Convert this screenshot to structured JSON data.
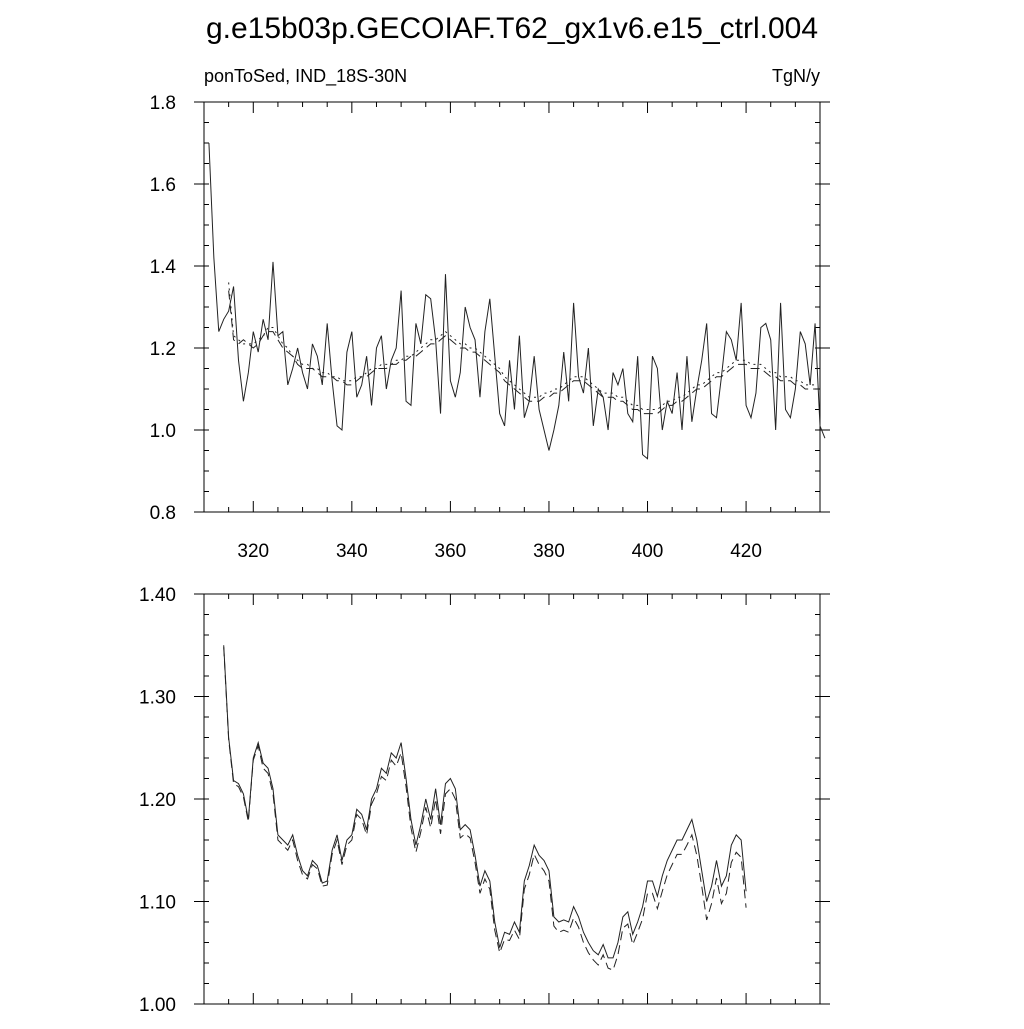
{
  "page": {
    "title": "g.e15b03p.GECOIAF.T62_gx1v6.e15_ctrl.004"
  },
  "chart_data": [
    {
      "type": "line",
      "subtitle_left": "ponToSed, IND_18S-30N",
      "subtitle_right": "TgN/y",
      "xlim": [
        310,
        435
      ],
      "ylim": [
        0.8,
        1.8
      ],
      "x_ticks": [
        320,
        340,
        360,
        380,
        400,
        420
      ],
      "x_tick_labels": [
        "320",
        "340",
        "360",
        "380",
        "400",
        "420"
      ],
      "y_ticks": [
        0.8,
        1.0,
        1.2,
        1.4,
        1.6,
        1.8
      ],
      "y_tick_labels": [
        "0.8",
        "1.0",
        "1.2",
        "1.4",
        "1.6",
        "1.8"
      ],
      "grid": false,
      "x_start": 311,
      "series": [
        {
          "style": "solid",
          "values": [
            1.7,
            1.42,
            1.24,
            1.27,
            1.29,
            1.35,
            1.17,
            1.07,
            1.14,
            1.24,
            1.19,
            1.27,
            1.22,
            1.41,
            1.23,
            1.24,
            1.11,
            1.15,
            1.2,
            1.14,
            1.1,
            1.21,
            1.18,
            1.11,
            1.26,
            1.12,
            1.01,
            1.0,
            1.19,
            1.24,
            1.08,
            1.11,
            1.18,
            1.06,
            1.2,
            1.23,
            1.1,
            1.17,
            1.2,
            1.34,
            1.07,
            1.06,
            1.26,
            1.21,
            1.33,
            1.32,
            1.22,
            1.04,
            1.38,
            1.12,
            1.08,
            1.14,
            1.3,
            1.25,
            1.22,
            1.08,
            1.24,
            1.32,
            1.18,
            1.04,
            1.01,
            1.17,
            1.05,
            1.23,
            1.03,
            1.07,
            1.18,
            1.05,
            1.0,
            0.95,
            1.0,
            1.06,
            1.19,
            1.07,
            1.31,
            1.13,
            1.09,
            1.2,
            1.01,
            1.1,
            1.08,
            1.0,
            1.14,
            1.11,
            1.15,
            1.04,
            1.02,
            1.18,
            0.94,
            0.93,
            1.18,
            1.15,
            1.0,
            1.07,
            1.04,
            1.14,
            1.0,
            1.18,
            1.02,
            1.1,
            1.17,
            1.26,
            1.04,
            1.03,
            1.13,
            1.24,
            1.22,
            1.17,
            1.31,
            1.06,
            1.03,
            1.09,
            1.25,
            1.26,
            1.22,
            1.0,
            1.31,
            1.05,
            1.03,
            1.1,
            1.24,
            1.21,
            1.11,
            1.26,
            1.01,
            0.98
          ]
        },
        {
          "style": "dashed",
          "values": [
            null,
            null,
            null,
            null,
            1.34,
            1.22,
            1.21,
            1.22,
            1.21,
            1.2,
            1.21,
            1.23,
            1.24,
            1.24,
            1.22,
            1.2,
            1.19,
            1.18,
            1.16,
            1.15,
            1.15,
            1.15,
            1.14,
            1.13,
            1.13,
            1.13,
            1.12,
            1.12,
            1.11,
            1.11,
            1.12,
            1.13,
            1.13,
            1.14,
            1.15,
            1.15,
            1.15,
            1.16,
            1.16,
            1.17,
            1.17,
            1.18,
            1.18,
            1.19,
            1.2,
            1.21,
            1.21,
            1.22,
            1.23,
            1.22,
            1.21,
            1.2,
            1.2,
            1.19,
            1.19,
            1.18,
            1.17,
            1.16,
            1.15,
            1.14,
            1.12,
            1.11,
            1.1,
            1.09,
            1.08,
            1.07,
            1.07,
            1.07,
            1.08,
            1.08,
            1.09,
            1.09,
            1.1,
            1.11,
            1.12,
            1.12,
            1.12,
            1.11,
            1.1,
            1.09,
            1.08,
            1.08,
            1.08,
            1.07,
            1.07,
            1.06,
            1.05,
            1.05,
            1.04,
            1.04,
            1.04,
            1.04,
            1.05,
            1.06,
            1.06,
            1.07,
            1.07,
            1.08,
            1.09,
            1.1,
            1.1,
            1.11,
            1.12,
            1.13,
            1.13,
            1.14,
            1.15,
            1.16,
            1.16,
            1.16,
            1.15,
            1.15,
            1.15,
            1.14,
            1.13,
            1.13,
            1.12,
            1.12,
            1.12,
            1.11,
            1.11,
            1.1,
            1.1,
            1.1,
            null,
            null
          ]
        },
        {
          "style": "dotted",
          "values": [
            null,
            null,
            null,
            null,
            1.36,
            1.23,
            1.22,
            1.21,
            1.21,
            1.21,
            1.22,
            1.23,
            1.25,
            1.25,
            1.23,
            1.21,
            1.2,
            1.18,
            1.17,
            1.16,
            1.16,
            1.15,
            1.15,
            1.14,
            1.14,
            1.13,
            1.13,
            1.12,
            1.12,
            1.12,
            1.13,
            1.13,
            1.14,
            1.15,
            1.15,
            1.16,
            1.16,
            1.16,
            1.17,
            1.17,
            1.18,
            1.18,
            1.19,
            1.2,
            1.21,
            1.22,
            1.22,
            1.23,
            1.24,
            1.23,
            1.22,
            1.21,
            1.21,
            1.2,
            1.2,
            1.19,
            1.18,
            1.17,
            1.16,
            1.15,
            1.13,
            1.12,
            1.11,
            1.1,
            1.09,
            1.08,
            1.08,
            1.08,
            1.09,
            1.09,
            1.1,
            1.1,
            1.11,
            1.12,
            1.13,
            1.13,
            1.13,
            1.12,
            1.11,
            1.1,
            1.09,
            1.09,
            1.09,
            1.08,
            1.08,
            1.07,
            1.06,
            1.06,
            1.05,
            1.05,
            1.05,
            1.05,
            1.06,
            1.07,
            1.07,
            1.08,
            1.08,
            1.09,
            1.1,
            1.11,
            1.11,
            1.12,
            1.13,
            1.14,
            1.14,
            1.15,
            1.16,
            1.17,
            1.17,
            1.17,
            1.16,
            1.16,
            1.16,
            1.15,
            1.14,
            1.14,
            1.13,
            1.13,
            1.13,
            1.12,
            1.12,
            1.11,
            1.11,
            1.11,
            null,
            null
          ]
        }
      ]
    },
    {
      "type": "line",
      "xlim": [
        310,
        435
      ],
      "ylim": [
        1.0,
        1.4
      ],
      "x_ticks": [
        320,
        340,
        360,
        380,
        400,
        420
      ],
      "y_ticks": [
        1.0,
        1.1,
        1.2,
        1.3,
        1.4
      ],
      "y_tick_labels": [
        "1.00",
        "1.10",
        "1.20",
        "1.30",
        "1.40"
      ],
      "grid": false,
      "x_start": 314,
      "series": [
        {
          "style": "solid",
          "values": [
            1.35,
            1.26,
            1.218,
            1.215,
            1.205,
            1.18,
            1.24,
            1.255,
            1.235,
            1.23,
            1.21,
            1.165,
            1.16,
            1.155,
            1.165,
            1.145,
            1.13,
            1.125,
            1.14,
            1.135,
            1.118,
            1.12,
            1.15,
            1.165,
            1.14,
            1.16,
            1.165,
            1.19,
            1.185,
            1.17,
            1.2,
            1.21,
            1.23,
            1.225,
            1.245,
            1.24,
            1.255,
            1.22,
            1.18,
            1.155,
            1.175,
            1.2,
            1.18,
            1.21,
            1.175,
            1.215,
            1.22,
            1.21,
            1.17,
            1.175,
            1.17,
            1.145,
            1.115,
            1.13,
            1.12,
            1.08,
            1.055,
            1.07,
            1.068,
            1.08,
            1.07,
            1.12,
            1.135,
            1.155,
            1.145,
            1.14,
            1.13,
            1.085,
            1.08,
            1.082,
            1.08,
            1.095,
            1.085,
            1.07,
            1.06,
            1.052,
            1.048,
            1.058,
            1.045,
            1.045,
            1.06,
            1.085,
            1.09,
            1.068,
            1.08,
            1.095,
            1.12,
            1.12,
            1.105,
            1.125,
            1.14,
            1.15,
            1.16,
            1.16,
            1.17,
            1.18,
            1.16,
            1.13,
            1.1,
            1.115,
            1.14,
            1.115,
            1.125,
            1.155,
            1.165,
            1.16,
            1.11
          ]
        },
        {
          "style": "dashed",
          "values": [
            1.348,
            1.258,
            1.215,
            1.212,
            1.202,
            1.178,
            1.238,
            1.252,
            1.23,
            1.225,
            1.205,
            1.16,
            1.155,
            1.15,
            1.16,
            1.14,
            1.126,
            1.122,
            1.136,
            1.132,
            1.115,
            1.116,
            1.146,
            1.16,
            1.136,
            1.155,
            1.16,
            1.185,
            1.18,
            1.165,
            1.195,
            1.205,
            1.222,
            1.218,
            1.238,
            1.232,
            1.245,
            1.212,
            1.172,
            1.148,
            1.168,
            1.192,
            1.172,
            1.2,
            1.166,
            1.205,
            1.21,
            1.2,
            1.162,
            1.166,
            1.162,
            1.138,
            1.108,
            1.122,
            1.112,
            1.072,
            1.05,
            1.063,
            1.062,
            1.072,
            1.063,
            1.112,
            1.126,
            1.146,
            1.136,
            1.13,
            1.12,
            1.076,
            1.07,
            1.072,
            1.07,
            1.084,
            1.075,
            1.06,
            1.05,
            1.043,
            1.038,
            1.048,
            1.035,
            1.033,
            1.048,
            1.074,
            1.078,
            1.058,
            1.07,
            1.083,
            1.108,
            1.108,
            1.093,
            1.11,
            1.126,
            1.136,
            1.146,
            1.146,
            1.155,
            1.165,
            1.145,
            1.115,
            1.082,
            1.098,
            1.123,
            1.098,
            1.108,
            1.138,
            1.148,
            1.143,
            1.094
          ]
        }
      ]
    }
  ]
}
